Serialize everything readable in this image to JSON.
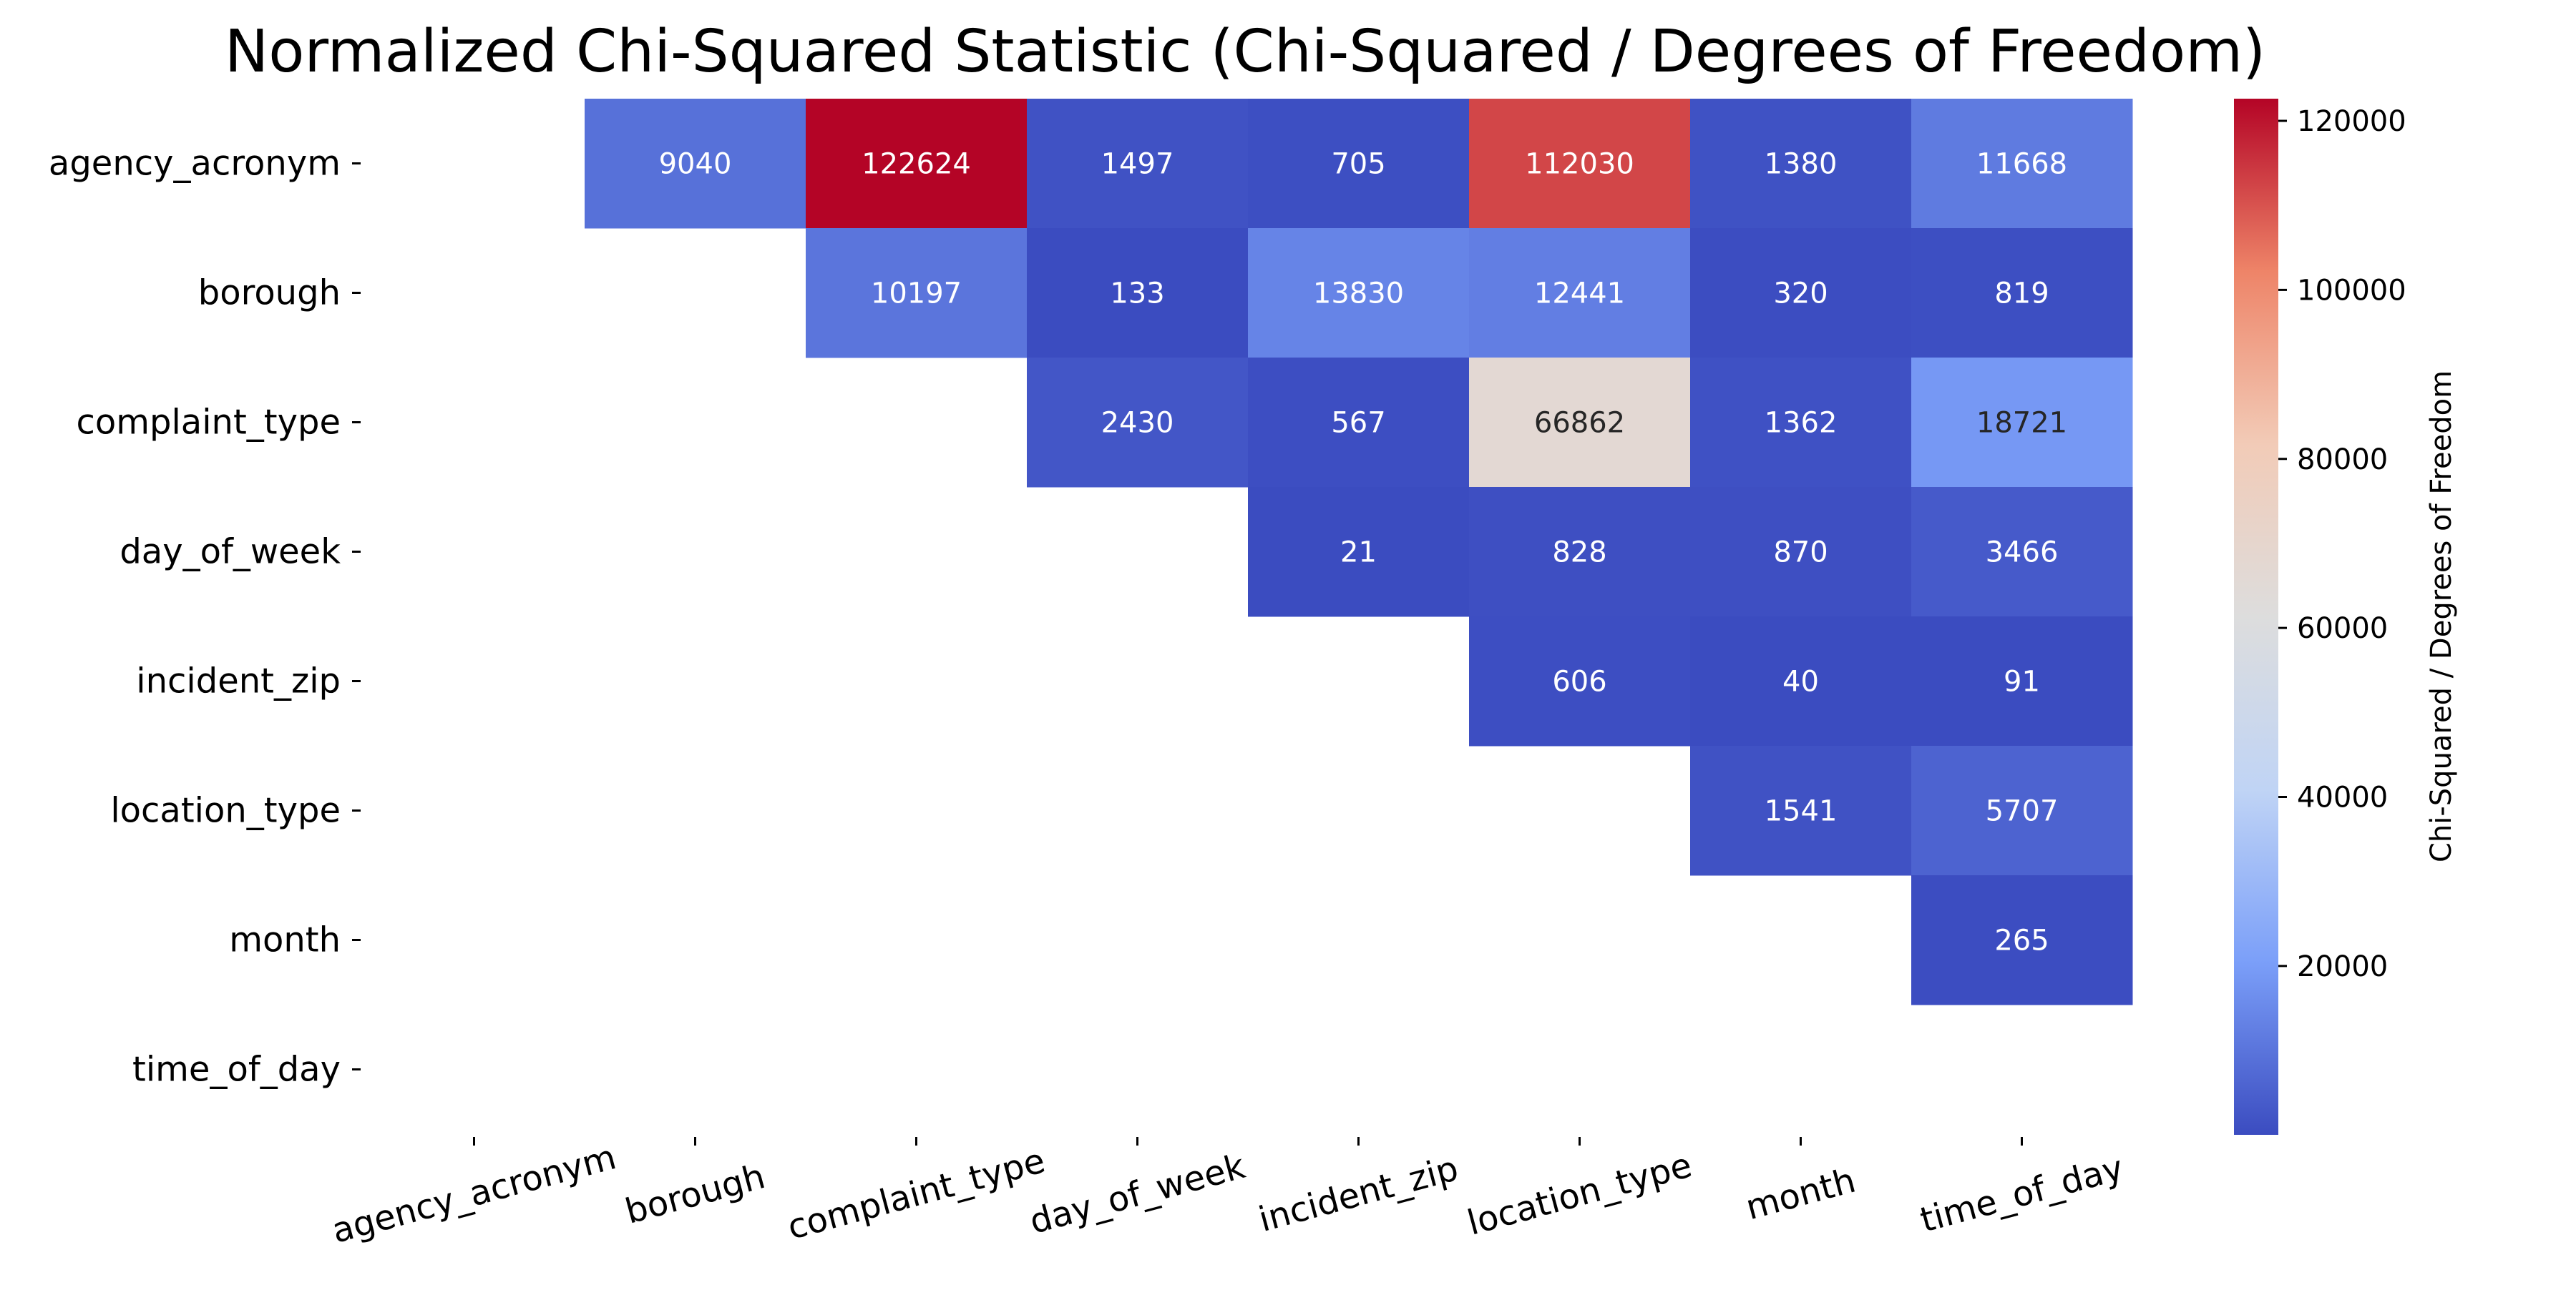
{
  "chart_data": {
    "type": "heatmap",
    "title": "Normalized Chi-Squared Statistic (Chi-Squared / Degrees of Freedom)",
    "rows": [
      "agency_acronym",
      "borough",
      "complaint_type",
      "day_of_week",
      "incident_zip",
      "location_type",
      "month",
      "time_of_day"
    ],
    "columns": [
      "agency_acronym",
      "borough",
      "complaint_type",
      "day_of_week",
      "incident_zip",
      "location_type",
      "month",
      "time_of_day"
    ],
    "values": [
      [
        null,
        9040,
        122624,
        1497,
        705,
        112030,
        1380,
        11668
      ],
      [
        null,
        null,
        10197,
        133,
        13830,
        12441,
        320,
        819
      ],
      [
        null,
        null,
        null,
        2430,
        567,
        66862,
        1362,
        18721
      ],
      [
        null,
        null,
        null,
        null,
        21,
        828,
        870,
        3466
      ],
      [
        null,
        null,
        null,
        null,
        null,
        606,
        40,
        91
      ],
      [
        null,
        null,
        null,
        null,
        null,
        null,
        1541,
        5707
      ],
      [
        null,
        null,
        null,
        null,
        null,
        null,
        null,
        265
      ],
      [
        null,
        null,
        null,
        null,
        null,
        null,
        null,
        null
      ]
    ],
    "mask": "lower-triangle-and-diagonal",
    "colormap": "coolwarm",
    "colormap_stops": [
      "#3b4cc0",
      "#7b9ff9",
      "#c0d4f5",
      "#dddddd",
      "#f2cbb7",
      "#ee8468",
      "#b40426"
    ],
    "color_range": [
      21,
      122624
    ],
    "annotations": "cell values",
    "colorbar": {
      "label": "Chi-Squared / Degrees of Freedom",
      "ticks": [
        20000,
        40000,
        60000,
        80000,
        100000,
        120000
      ],
      "tick_labels": [
        "20000",
        "40000",
        "60000",
        "80000",
        "100000",
        "120000"
      ]
    },
    "xtick_rotation_deg": 15
  }
}
